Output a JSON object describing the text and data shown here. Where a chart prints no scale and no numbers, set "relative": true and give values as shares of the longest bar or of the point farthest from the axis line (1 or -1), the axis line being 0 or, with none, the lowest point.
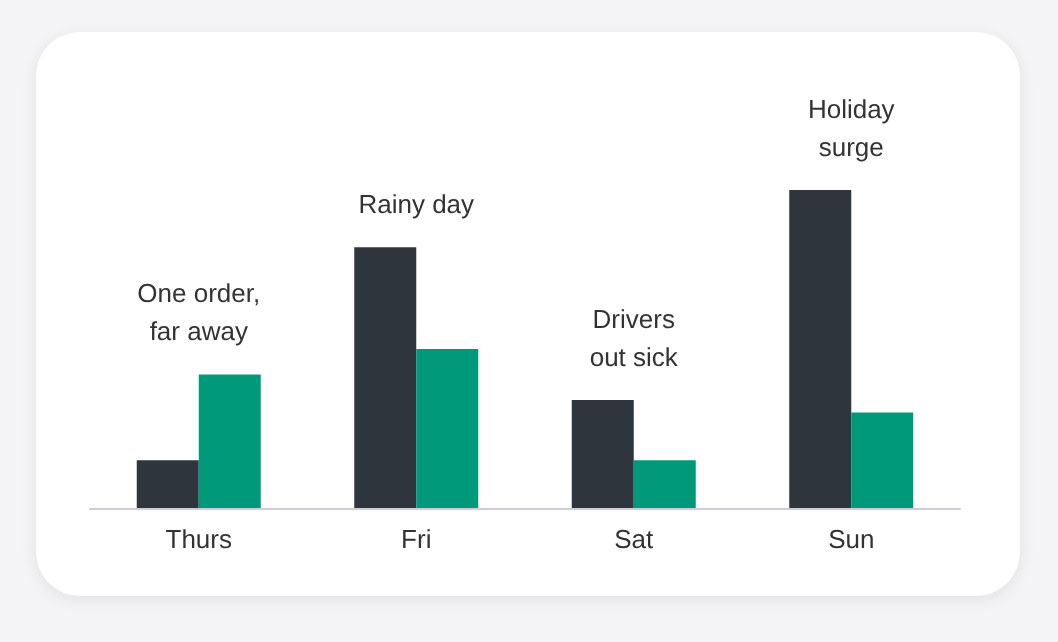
{
  "chart_data": {
    "type": "bar",
    "relative": true,
    "categories": [
      "Thurs",
      "Fri",
      "Sat",
      "Sun"
    ],
    "series": [
      {
        "color": "#2e353d",
        "values": [
          0.15,
          0.82,
          0.34,
          1
        ]
      },
      {
        "color": "#009a7a",
        "values": [
          0.42,
          0.5,
          0.15,
          0.3
        ]
      }
    ],
    "annotations": [
      {
        "text": "One order,\nfar away",
        "x": "Thurs",
        "y": 0.42
      },
      {
        "text": "Rainy day",
        "x": "Fri",
        "y": 0.82
      },
      {
        "text": "Drivers\nout sick",
        "x": "Sat",
        "y": 0.34
      },
      {
        "text": "Holiday\nsurge",
        "x": "Sun",
        "y": 1
      }
    ]
  }
}
